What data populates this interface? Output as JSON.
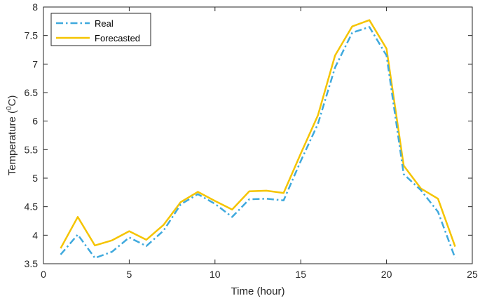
{
  "chart_data": {
    "type": "line",
    "title": "",
    "xlabel": "Time (hour)",
    "ylabel_main": "Temperature (",
    "ylabel_sup": "0",
    "ylabel_end": "C)",
    "xlim": [
      0,
      25
    ],
    "ylim": [
      3.5,
      8
    ],
    "xticks": [
      0,
      5,
      10,
      15,
      20,
      25
    ],
    "xtick_labels": [
      "0",
      "5",
      "10",
      "15",
      "20",
      "25"
    ],
    "yticks": [
      3.5,
      4,
      4.5,
      5,
      5.5,
      6,
      6.5,
      7,
      7.5,
      8
    ],
    "ytick_labels": [
      "3.5",
      "4",
      "4.5",
      "5",
      "5.5",
      "6",
      "6.5",
      "7",
      "7.5",
      "8"
    ],
    "grid": false,
    "legend_position": "top-left",
    "x": [
      1,
      2,
      3,
      4,
      5,
      6,
      7,
      8,
      9,
      10,
      11,
      12,
      13,
      14,
      15,
      16,
      17,
      18,
      19,
      20,
      21,
      22,
      23,
      24
    ],
    "series": [
      {
        "name": "Real",
        "color": "#3fa9dd",
        "style": "dashdot",
        "values": [
          3.66,
          4.01,
          3.6,
          3.71,
          3.96,
          3.81,
          4.08,
          4.54,
          4.72,
          4.55,
          4.32,
          4.63,
          4.64,
          4.61,
          5.3,
          5.95,
          6.94,
          7.55,
          7.65,
          7.15,
          5.07,
          4.79,
          4.41,
          3.6
        ]
      },
      {
        "name": "Forecasted",
        "color": "#f5c400",
        "style": "solid",
        "values": [
          3.77,
          4.32,
          3.82,
          3.91,
          4.07,
          3.92,
          4.18,
          4.58,
          4.76,
          4.6,
          4.45,
          4.77,
          4.78,
          4.74,
          5.43,
          6.1,
          7.15,
          7.66,
          7.77,
          7.27,
          5.22,
          4.82,
          4.64,
          3.8
        ]
      }
    ]
  }
}
